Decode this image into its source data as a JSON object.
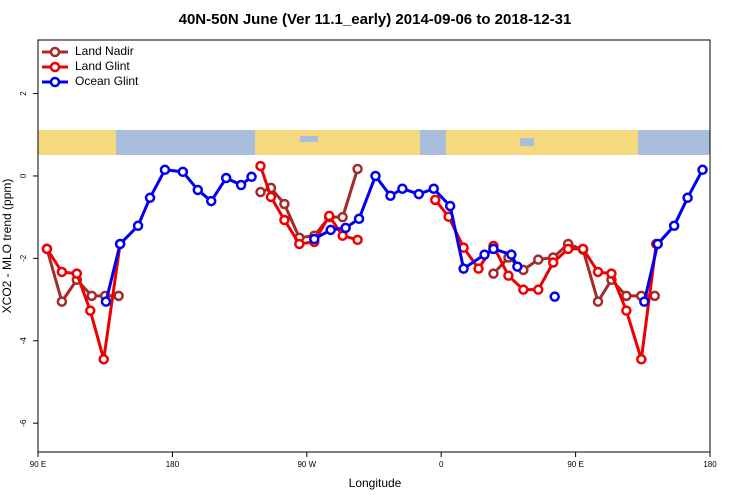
{
  "chart_data": {
    "type": "line",
    "title": "40N-50N June (Ver 11.1_early)   2014-09-06 to 2018-12-31",
    "x_label": "Longitude",
    "y_label": "XCO2 - MLO trend (ppm)",
    "xlim": [
      90,
      540
    ],
    "ylim": [
      -6.7,
      3.3
    ],
    "xticks": [
      {
        "value": 90,
        "label": "90 E"
      },
      180,
      {
        "value": 270,
        "label": "90 W"
      },
      {
        "value": 360,
        "label": "0"
      },
      {
        "value": 450,
        "label": "90 E"
      },
      {
        "value": 540,
        "label": "180"
      }
    ],
    "yticks": [
      -6,
      -4,
      -2,
      0,
      2
    ],
    "legend": "top-left",
    "series": [
      {
        "name": "Land Nadir",
        "color": "#a52a2a",
        "x": [
          96,
          106,
          116,
          126,
          135,
          144,
          null,
          239,
          246,
          255,
          265,
          275,
          285,
          294,
          304,
          null,
          395,
          405,
          415,
          425,
          435,
          445,
          455,
          465,
          474,
          484,
          494,
          503
        ],
        "values": [
          -1.77,
          -3.05,
          -2.52,
          -2.91,
          -2.91,
          -2.91,
          null,
          -0.39,
          -0.29,
          -0.68,
          -1.5,
          -1.45,
          -1.0,
          -1.0,
          0.17,
          null,
          -2.37,
          -1.98,
          -2.28,
          -2.03,
          -1.98,
          -1.65,
          -1.79,
          -3.05,
          -2.52,
          -2.91,
          -2.91,
          -2.91
        ]
      },
      {
        "name": "Land Glint",
        "color": "#ee0000",
        "x": [
          96,
          106,
          116,
          125,
          134,
          145,
          null,
          239,
          246,
          255,
          265,
          275,
          285,
          294,
          304,
          null,
          356,
          365,
          375,
          385,
          395,
          405,
          415,
          425,
          435,
          445,
          455,
          465,
          474,
          484,
          494,
          504
        ],
        "values": [
          -1.77,
          -2.33,
          -2.37,
          -3.27,
          -4.45,
          -1.65,
          null,
          0.24,
          -0.51,
          -1.07,
          -1.65,
          -1.6,
          -0.97,
          -1.45,
          -1.55,
          null,
          -0.58,
          -0.99,
          -1.74,
          -2.25,
          -1.7,
          -2.42,
          -2.76,
          -2.76,
          -2.1,
          -1.77,
          -1.77,
          -2.33,
          -2.37,
          -3.27,
          -4.45,
          -1.65
        ]
      },
      {
        "name": "Ocean Glint",
        "color": "#0000ee",
        "x": [
          135.5,
          145,
          157,
          165,
          175,
          187,
          197,
          206,
          216,
          226,
          233,
          null,
          275,
          286,
          296,
          305,
          316,
          326,
          334,
          345,
          355,
          366,
          375,
          389,
          395,
          407,
          411,
          null,
          436,
          null,
          496,
          505,
          516,
          525,
          535
        ],
        "values": [
          -3.05,
          -1.65,
          -1.21,
          -0.53,
          0.15,
          0.1,
          -0.34,
          -0.61,
          -0.05,
          -0.22,
          -0.02,
          null,
          -1.53,
          -1.31,
          -1.26,
          -1.04,
          0.0,
          -0.48,
          -0.31,
          -0.44,
          -0.31,
          -0.73,
          -2.25,
          -1.91,
          -1.77,
          -1.91,
          -2.2,
          null,
          -2.93,
          null,
          -3.05,
          -1.65,
          -1.21,
          -0.53,
          0.15
        ]
      }
    ]
  }
}
